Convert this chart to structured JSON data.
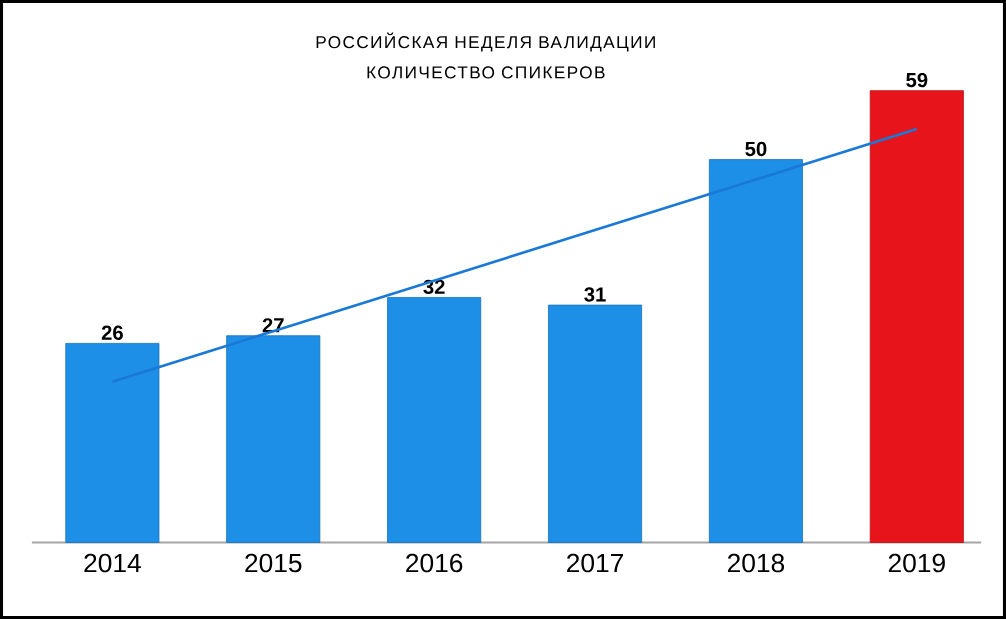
{
  "chart_data": {
    "type": "bar",
    "title": "РОССИЙСКАЯ НЕДЕЛЯ ВАЛИДАЦИИ",
    "subtitle": "КОЛИЧЕСТВО СПИКЕРОВ",
    "categories": [
      "2014",
      "2015",
      "2016",
      "2017",
      "2018",
      "2019"
    ],
    "series": [
      {
        "values": [
          26,
          27,
          32,
          31,
          50,
          59
        ],
        "value_labels": [
          "26",
          "27",
          "32",
          "31",
          "50",
          "59"
        ],
        "colors": [
          "#1e8fe6",
          "#1e8fe6",
          "#1e8fe6",
          "#1e8fe6",
          "#1e8fe6",
          "#e8141c"
        ]
      },
      {
        "type": "line",
        "values": [
          21,
          27.6,
          34.2,
          40.8,
          47.4,
          54
        ],
        "color": "#1a78d6"
      }
    ]
  }
}
